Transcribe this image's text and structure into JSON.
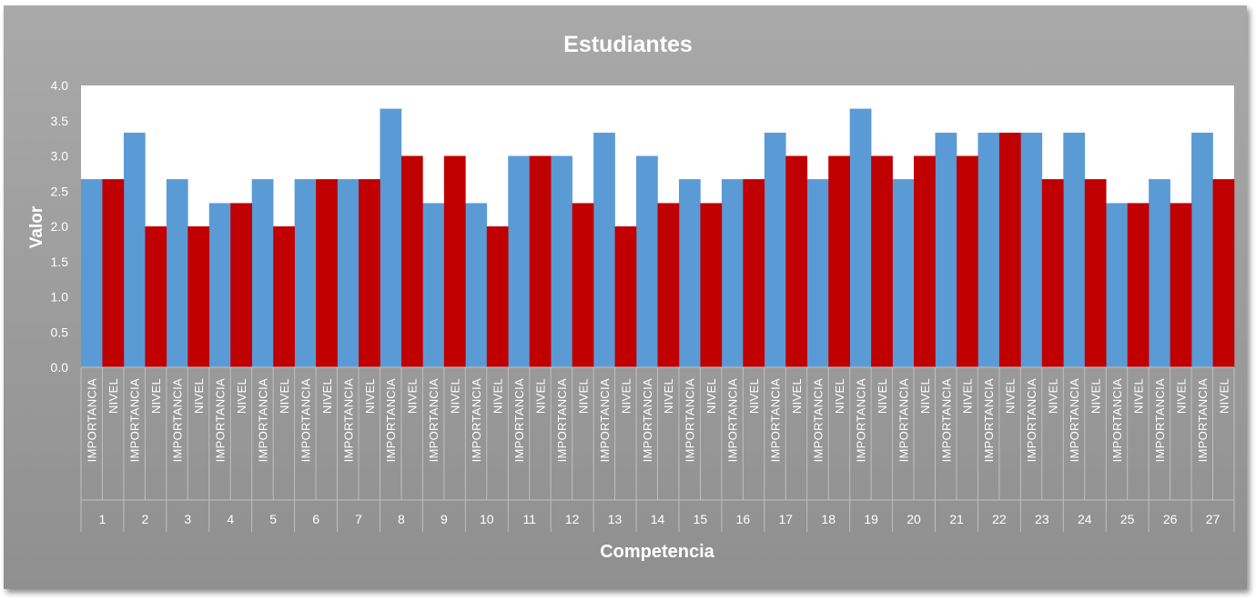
{
  "chart_data": {
    "type": "bar",
    "title": "Estudiantes",
    "xlabel": "Competencia",
    "ylabel": "Valor",
    "ylim": [
      0,
      4
    ],
    "yticks": [
      "0.0",
      "0.5",
      "1.0",
      "1.5",
      "2.0",
      "2.5",
      "3.0",
      "3.5",
      "4.0"
    ],
    "categories": [
      "1",
      "2",
      "3",
      "4",
      "5",
      "6",
      "7",
      "8",
      "9",
      "10",
      "11",
      "12",
      "13",
      "14",
      "15",
      "16",
      "17",
      "18",
      "19",
      "20",
      "21",
      "22",
      "23",
      "24",
      "25",
      "26",
      "27"
    ],
    "sub_labels": [
      "IMPORTANCIA",
      "NIVEL"
    ],
    "series": [
      {
        "color": "#5b9bd5",
        "values": [
          2.67,
          3.33,
          2.67,
          2.33,
          2.67,
          2.67,
          2.67,
          3.67,
          2.33,
          2.33,
          3.0,
          3.0,
          3.33,
          3.0,
          2.67,
          2.67,
          3.33,
          2.67,
          3.67,
          2.67,
          3.33,
          3.33,
          3.33,
          3.33,
          2.33,
          2.67,
          3.33
        ]
      },
      {
        "color": "#c00000",
        "values": [
          2.67,
          2.0,
          2.0,
          2.33,
          2.0,
          2.67,
          2.67,
          3.0,
          3.0,
          2.0,
          3.0,
          2.33,
          2.0,
          2.33,
          2.33,
          2.67,
          3.0,
          3.0,
          3.0,
          3.0,
          3.0,
          3.33,
          2.67,
          2.67,
          2.33,
          2.33,
          2.67
        ]
      }
    ],
    "grid": false,
    "legend": "none"
  }
}
